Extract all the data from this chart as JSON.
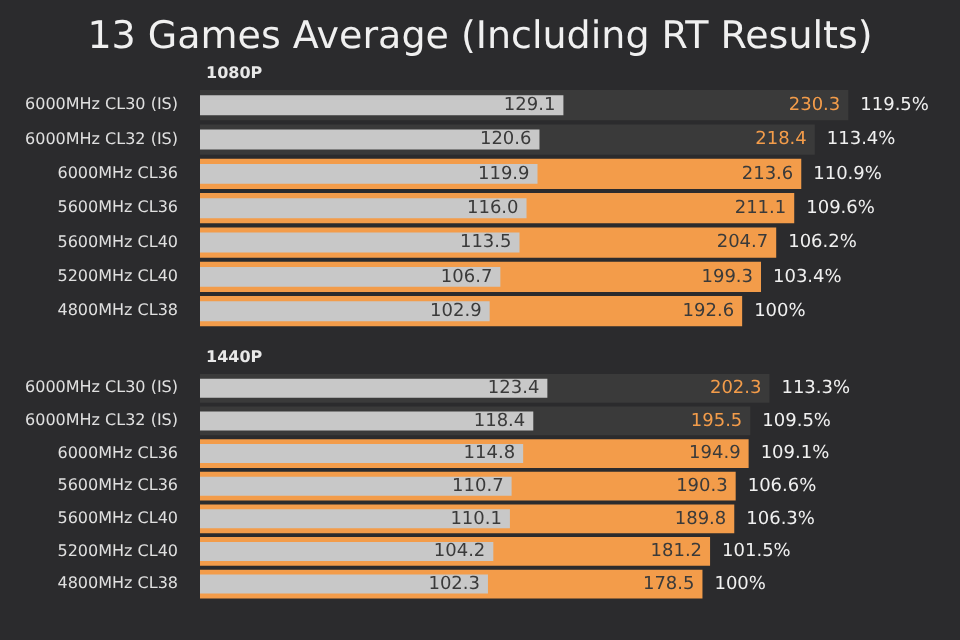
{
  "chart_data": [
    {
      "type": "bar",
      "orientation": "horizontal",
      "title": "13 Games Average (Including RT Results)",
      "subtitle": "1080P",
      "tick_labels": "y",
      "categories": [
        "6000MHz CL30 (IS)",
        "6000MHz CL32 (IS)",
        "6000MHz CL36",
        "5600MHz CL36",
        "5600MHz CL40",
        "5200MHz CL40",
        "4800MHz CL38"
      ],
      "series": [
        {
          "color": "#c8c8c8",
          "values": [
            129.1,
            120.6,
            119.9,
            116.0,
            113.5,
            106.7,
            102.9
          ],
          "value_labels": [
            "129.1",
            "120.6",
            "119.9",
            "116.0",
            "113.5",
            "106.7",
            "102.9"
          ]
        },
        {
          "color": "#f39c4a",
          "colors": [
            "#3a3a3a",
            "#3a3a3a",
            "#f39c4a",
            "#f39c4a",
            "#f39c4a",
            "#f39c4a",
            "#f39c4a"
          ],
          "values": [
            230.3,
            218.4,
            213.6,
            211.1,
            204.7,
            199.3,
            192.6
          ],
          "value_labels": [
            "230.3",
            "218.4",
            "213.6",
            "211.1",
            "204.7",
            "199.3",
            "192.6"
          ]
        }
      ],
      "annotations": [
        {
          "text": "119.5%",
          "x": 230.3,
          "y": "6000MHz CL30 (IS)"
        },
        {
          "text": "113.4%",
          "x": 218.4,
          "y": "6000MHz CL32 (IS)"
        },
        {
          "text": "110.9%",
          "x": 213.6,
          "y": "6000MHz CL36"
        },
        {
          "text": "109.6%",
          "x": 211.1,
          "y": "5600MHz CL36"
        },
        {
          "text": "106.2%",
          "x": 204.7,
          "y": "5600MHz CL40"
        },
        {
          "text": "103.4%",
          "x": 199.3,
          "y": "5200MHz CL40"
        },
        {
          "text": "100%",
          "x": 192.6,
          "y": "4800MHz CL38"
        }
      ]
    },
    {
      "type": "bar",
      "orientation": "horizontal",
      "subtitle": "1440P",
      "tick_labels": "y",
      "categories": [
        "6000MHz CL30 (IS)",
        "6000MHz CL32 (IS)",
        "6000MHz CL36",
        "5600MHz CL36",
        "5600MHz CL40",
        "5200MHz CL40",
        "4800MHz CL38"
      ],
      "series": [
        {
          "color": "#c8c8c8",
          "values": [
            123.4,
            118.4,
            114.8,
            110.7,
            110.1,
            104.2,
            102.3
          ],
          "value_labels": [
            "123.4",
            "118.4",
            "114.8",
            "110.7",
            "110.1",
            "104.2",
            "102.3"
          ]
        },
        {
          "color": "#f39c4a",
          "colors": [
            "#3a3a3a",
            "#3a3a3a",
            "#f39c4a",
            "#f39c4a",
            "#f39c4a",
            "#f39c4a",
            "#f39c4a"
          ],
          "values": [
            202.3,
            195.5,
            194.9,
            190.3,
            189.8,
            181.2,
            178.5
          ],
          "value_labels": [
            "202.3",
            "195.5",
            "194.9",
            "190.3",
            "189.8",
            "181.2",
            "178.5"
          ]
        }
      ],
      "annotations": [
        {
          "text": "113.3%",
          "x": 202.3,
          "y": "6000MHz CL30 (IS)"
        },
        {
          "text": "109.5%",
          "x": 195.5,
          "y": "6000MHz CL32 (IS)"
        },
        {
          "text": "109.1%",
          "x": 194.9,
          "y": "6000MHz CL36"
        },
        {
          "text": "106.6%",
          "x": 190.3,
          "y": "5600MHz CL36"
        },
        {
          "text": "106.3%",
          "x": 189.8,
          "y": "5600MHz CL40"
        },
        {
          "text": "101.5%",
          "x": 181.2,
          "y": "5200MHz CL40"
        },
        {
          "text": "100%",
          "x": 178.5,
          "y": "4800MHz CL38"
        }
      ]
    }
  ]
}
